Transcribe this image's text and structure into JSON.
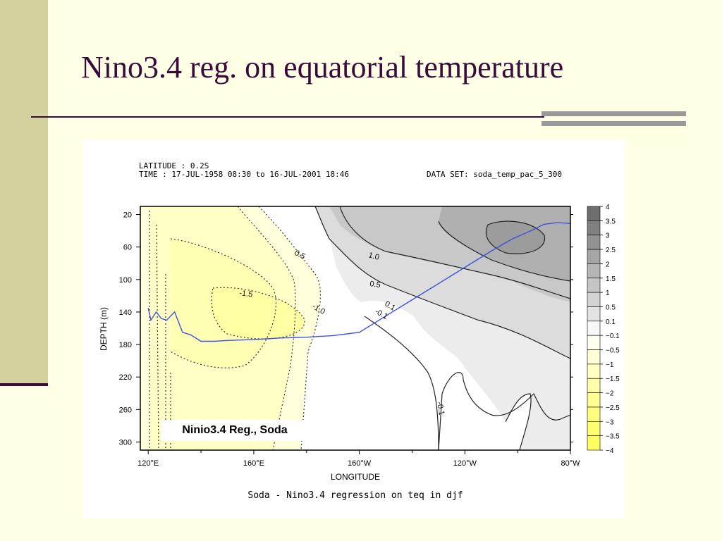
{
  "slide": {
    "title": "Nino3.4 reg. on equatorial temperature"
  },
  "chart_data": {
    "type": "heatmap",
    "header": {
      "latitude": "LATITUDE : 0.2S",
      "time": "TIME : 17-JUL-1958 08:30 to 16-JUL-2001 18:46",
      "dataset": "DATA SET: soda_temp_pac_5_300"
    },
    "ylabel": "DEPTH (m)",
    "xlabel": "LONGITUDE",
    "caption": "Soda - Nino3.4 regression on teq in djf",
    "inset_label": "Ninio3.4 Reg., Soda",
    "yticks": [
      20,
      60,
      100,
      140,
      180,
      220,
      260,
      300
    ],
    "ylim": [
      10,
      310
    ],
    "xticks": [
      "120°E",
      "160°E",
      "160°W",
      "120°W",
      "80°W"
    ],
    "xlim_deg_east": [
      117,
      280
    ],
    "colorbar": {
      "levels": [
        4,
        3.5,
        3,
        2.5,
        2,
        1.5,
        1,
        0.5,
        0.1,
        -0.1,
        -0.5,
        -1,
        -1.5,
        -2,
        -2.5,
        -3,
        -3.5,
        -4
      ],
      "labels": [
        "4",
        "3.5",
        "3",
        "2.5",
        "2",
        "1.5",
        "1",
        "0.5",
        "0.1",
        "−0.1",
        "−0.5",
        "−1",
        "−1.5",
        "−2",
        "−2.5",
        "−3",
        "−3.5",
        "−4"
      ],
      "colors": [
        "#6E6E6E",
        "#808080",
        "#929292",
        "#A5A5A5",
        "#B5B5B5",
        "#C5C5C5",
        "#D3D3D3",
        "#E3E3E3",
        "#F7F7F7",
        "#FFFFF0",
        "#FFFFD6",
        "#FFFFBE",
        "#FFFFA8",
        "#FFFF92",
        "#FFFF7E",
        "#FFFF6E",
        "#FFFF60"
      ]
    },
    "contour_labels": [
      "0.5",
      "1.0",
      "0.5",
      "0.1",
      "-1.5",
      "-1.0",
      "-0.1",
      "-0.1"
    ],
    "thermocline": {
      "lon": [
        120,
        121,
        123,
        125,
        127,
        130,
        133,
        136,
        140,
        145,
        150,
        160,
        170,
        180,
        190,
        200,
        210,
        220,
        230,
        240,
        250,
        258,
        265,
        270,
        275,
        280
      ],
      "depth": [
        135,
        150,
        140,
        148,
        150,
        140,
        165,
        168,
        176,
        176,
        175,
        174,
        172,
        171,
        169,
        165,
        145,
        125,
        105,
        85,
        65,
        50,
        40,
        32,
        30,
        31
      ]
    }
  }
}
